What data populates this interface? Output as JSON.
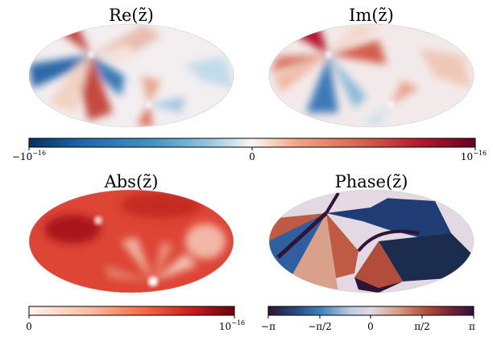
{
  "chart_data": [
    {
      "type": "heatmap",
      "projection": "Mollweide",
      "title": "Re(z̃)",
      "colormap": "RdBu_r diverging",
      "vmin": "−10^−16",
      "vmax": "10^−16",
      "features": [
        {
          "kind": "vortex",
          "lon": -90,
          "lat": 25
        },
        {
          "kind": "vortex",
          "lon": 40,
          "lat": -55
        }
      ]
    },
    {
      "type": "heatmap",
      "projection": "Mollweide",
      "title": "Im(z̃)",
      "colormap": "RdBu_r diverging",
      "vmin": "−10^−16",
      "vmax": "10^−16",
      "features": [
        {
          "kind": "vortex",
          "lon": -90,
          "lat": 25
        },
        {
          "kind": "vortex",
          "lon": 40,
          "lat": -55
        }
      ]
    },
    {
      "type": "heatmap",
      "projection": "Mollweide",
      "title": "Abs(z̃)",
      "colormap": "Reds sequential",
      "vmin": "0",
      "vmax": "10^−16",
      "features": [
        {
          "kind": "zero",
          "lon": -90,
          "lat": 25
        },
        {
          "kind": "zero",
          "lon": 40,
          "lat": -55
        }
      ]
    },
    {
      "type": "heatmap",
      "projection": "Mollweide",
      "title": "Phase(z̃)",
      "colormap": "twilight_shifted cyclic",
      "vmin": "−π",
      "vmax": "π",
      "features": [
        {
          "kind": "phase-singularity",
          "lon": -90,
          "lat": 25
        },
        {
          "kind": "phase-singularity",
          "lon": 40,
          "lat": -55
        }
      ]
    }
  ],
  "colorbars": [
    {
      "name": "re-im-colorbar",
      "labels": [
        "−10",
        "0",
        "10"
      ],
      "label_exponents": [
        "−16",
        "",
        "−16"
      ]
    },
    {
      "name": "abs-colorbar",
      "labels": [
        "0",
        "10"
      ],
      "label_exponents": [
        "",
        "−16"
      ]
    },
    {
      "name": "phase-colorbar",
      "labels": [
        "−π",
        "−π/2",
        "0",
        "π/2",
        "π"
      ]
    }
  ],
  "colors": {
    "blue_dark": "#053061",
    "blue_mid": "#2166ac",
    "blue_light": "#92c5de",
    "white": "#f7f7f7",
    "red_light": "#f4a582",
    "red_mid": "#d6604d",
    "red_dark": "#67001f",
    "phase_dark": "#2f1436"
  }
}
